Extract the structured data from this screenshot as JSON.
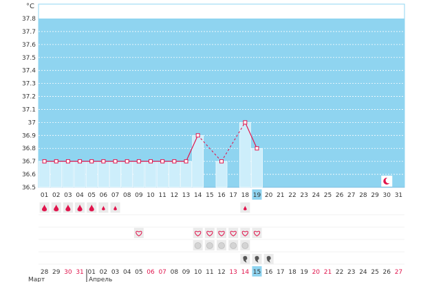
{
  "unit_label": "°C",
  "months": [
    "Март",
    "Апрель"
  ],
  "colors": {
    "plot_bg": "#8fd4f0",
    "bar_fill": "#cdeefb",
    "line": "#e0144c",
    "marker": "#e0144c",
    "selected_day": "#8fd4f0",
    "weekend_text": "#e0144c",
    "icon_bg": "#ebebeb"
  },
  "chart_data": {
    "type": "line",
    "title": "",
    "xlabel": "",
    "ylabel": "°C",
    "ylim": [
      36.5,
      37.8
    ],
    "yticks": [
      "37.8",
      "37.7",
      "37.6",
      "37.5",
      "37.4",
      "37.3",
      "37.2",
      "37.1",
      "37",
      "36.9",
      "36.8",
      "36.7",
      "36.6",
      "36.5"
    ],
    "grid": true,
    "categories": [
      "01",
      "02",
      "03",
      "04",
      "05",
      "06",
      "07",
      "08",
      "09",
      "10",
      "11",
      "12",
      "13",
      "14",
      "15",
      "16",
      "17",
      "18",
      "19",
      "20",
      "21",
      "22",
      "23",
      "24",
      "25",
      "26",
      "27",
      "28",
      "29",
      "30",
      "31"
    ],
    "series": [
      {
        "values": [
          36.7,
          36.7,
          36.7,
          36.7,
          36.7,
          36.7,
          36.7,
          36.7,
          36.7,
          36.7,
          36.7,
          36.7,
          36.7,
          36.9,
          null,
          36.7,
          null,
          37.0,
          36.8,
          null,
          null,
          null,
          null,
          null,
          null,
          null,
          null,
          null,
          null,
          null,
          null
        ]
      }
    ],
    "gap_segments": [
      [
        14,
        16
      ],
      [
        16,
        18
      ]
    ],
    "selected_index": 19
  },
  "icon_rows": {
    "blood": [
      "drop-large",
      "drop-large",
      "drop-large",
      "drop-large",
      "drop-large",
      "drop-small",
      "drop-small",
      "",
      "",
      "",
      "",
      "",
      "",
      "",
      "",
      "",
      "",
      "drop-small",
      "",
      "",
      "",
      "",
      "",
      "",
      "",
      "",
      "",
      "",
      "",
      "",
      ""
    ],
    "heart": [
      "",
      "",
      "",
      "",
      "",
      "",
      "",
      "",
      "heart",
      "",
      "",
      "",
      "",
      "heart",
      "heart",
      "heart",
      "heart",
      "heart",
      "heart",
      "",
      "",
      "",
      "",
      "",
      "",
      "",
      "",
      "",
      "",
      "",
      ""
    ],
    "pill": [
      "",
      "",
      "",
      "",
      "",
      "",
      "",
      "",
      "",
      "",
      "",
      "",
      "",
      "pill",
      "pill",
      "pill",
      "pill",
      "pill",
      "",
      "",
      "",
      "",
      "",
      "",
      "",
      "",
      "",
      "",
      "",
      "",
      ""
    ],
    "egg": [
      "",
      "",
      "",
      "",
      "",
      "",
      "",
      "",
      "",
      "",
      "",
      "",
      "",
      "",
      "",
      "",
      "",
      "egg",
      "egg",
      "egg",
      "",
      "",
      "",
      "",
      "",
      "",
      "",
      "",
      "",
      "",
      ""
    ]
  },
  "moon_day": 30,
  "dates_bottom": [
    {
      "t": "28",
      "red": false
    },
    {
      "t": "29",
      "red": false
    },
    {
      "t": "30",
      "red": true
    },
    {
      "t": "31",
      "red": true
    },
    {
      "t": "01",
      "red": false
    },
    {
      "t": "02",
      "red": false
    },
    {
      "t": "03",
      "red": false
    },
    {
      "t": "04",
      "red": false
    },
    {
      "t": "05",
      "red": false
    },
    {
      "t": "06",
      "red": true
    },
    {
      "t": "07",
      "red": true
    },
    {
      "t": "08",
      "red": false
    },
    {
      "t": "09",
      "red": false
    },
    {
      "t": "10",
      "red": false
    },
    {
      "t": "11",
      "red": false
    },
    {
      "t": "12",
      "red": false
    },
    {
      "t": "13",
      "red": true
    },
    {
      "t": "14",
      "red": true
    },
    {
      "t": "15",
      "red": false
    },
    {
      "t": "16",
      "red": false
    },
    {
      "t": "17",
      "red": false
    },
    {
      "t": "18",
      "red": false
    },
    {
      "t": "19",
      "red": false
    },
    {
      "t": "20",
      "red": true
    },
    {
      "t": "21",
      "red": true
    },
    {
      "t": "22",
      "red": false
    },
    {
      "t": "23",
      "red": false
    },
    {
      "t": "24",
      "red": false
    },
    {
      "t": "25",
      "red": false
    },
    {
      "t": "26",
      "red": false
    },
    {
      "t": "27",
      "red": true
    }
  ]
}
